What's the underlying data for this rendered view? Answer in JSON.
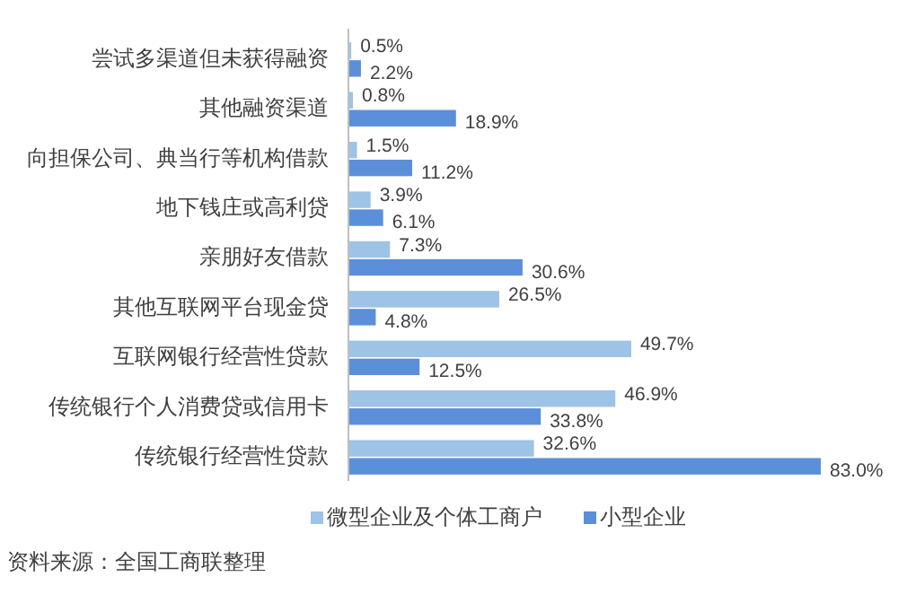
{
  "chart_data": {
    "type": "bar",
    "orientation": "horizontal",
    "categories": [
      "尝试多渠道但未获得融资",
      "其他融资渠道",
      "向担保公司、典当行等机构借款",
      "地下钱庄或高利贷",
      "亲朋好友借款",
      "其他互联网平台现金贷",
      "互联网银行经营性贷款",
      "传统银行个人消费贷或信用卡",
      "传统银行经营性贷款"
    ],
    "series": [
      {
        "name": "微型企业及个体工商户",
        "color": "#9dc3e6",
        "values": [
          0.5,
          0.8,
          1.5,
          3.9,
          7.3,
          26.5,
          49.7,
          46.9,
          32.6
        ],
        "value_labels": [
          "0.5%",
          "0.8%",
          "1.5%",
          "3.9%",
          "7.3%",
          "26.5%",
          "49.7%",
          "46.9%",
          "32.6%"
        ]
      },
      {
        "name": "小型企业",
        "color": "#5b8fd9",
        "values": [
          2.2,
          18.9,
          11.2,
          6.1,
          30.6,
          4.8,
          12.5,
          33.8,
          83.0
        ],
        "value_labels": [
          "2.2%",
          "18.9%",
          "11.2%",
          "6.1%",
          "30.6%",
          "4.8%",
          "12.5%",
          "33.8%",
          "83.0%"
        ]
      }
    ],
    "legend": "bottom",
    "annotations": [
      "资料来源：全国工商联整理"
    ]
  }
}
